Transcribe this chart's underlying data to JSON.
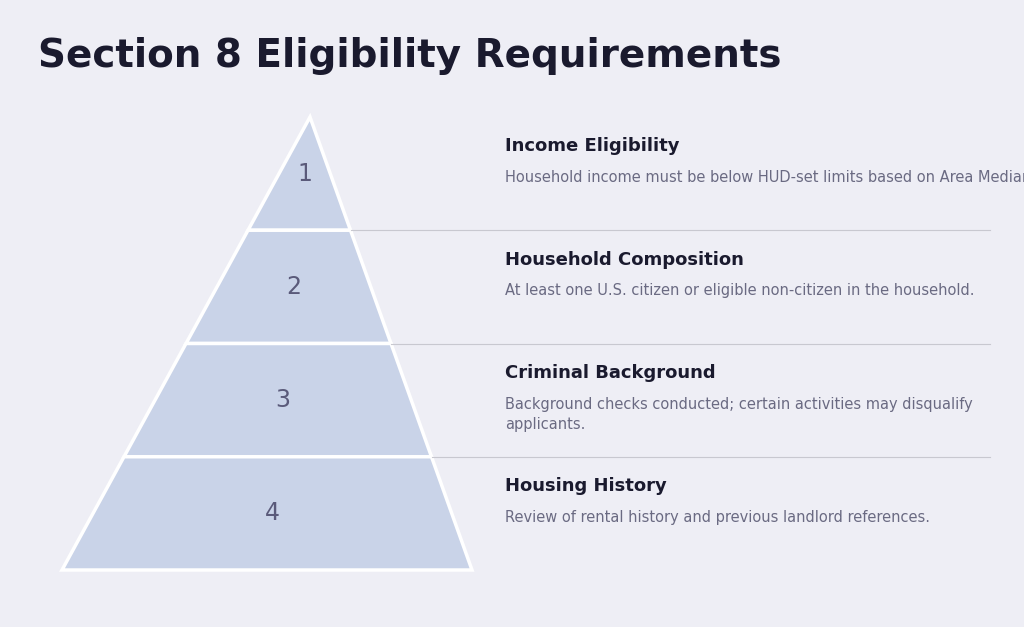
{
  "title": "Section 8 Eligibility Requirements",
  "background_color": "#eeeef5",
  "pyramid_fill_color": "#c9d3e8",
  "pyramid_edge_color": "#ffffff",
  "divider_color": "#c8c8d0",
  "title_color": "#1a1a2e",
  "number_color": "#5a5a7a",
  "heading_color": "#1a1a2e",
  "body_color": "#6a6a82",
  "layers": [
    {
      "number": "1",
      "heading": "Income Eligibility",
      "body": "Household income must be below HUD-set limits based on Area Median Income."
    },
    {
      "number": "2",
      "heading": "Household Composition",
      "body": "At least one U.S. citizen or eligible non-citizen in the household."
    },
    {
      "number": "3",
      "heading": "Criminal Background",
      "body": "Background checks conducted; certain activities may disqualify\napplicants."
    },
    {
      "number": "4",
      "heading": "Housing History",
      "body": "Review of rental history and previous landlord references."
    }
  ]
}
